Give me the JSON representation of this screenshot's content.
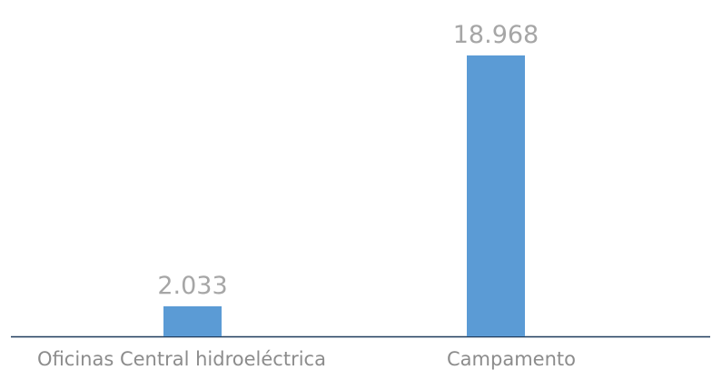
{
  "chart_data": {
    "type": "bar",
    "categories": [
      "Oficinas Central hidroeléctrica",
      "Campamento"
    ],
    "values": [
      2033,
      18968
    ],
    "value_labels": [
      "2.033",
      "18.968"
    ],
    "color": "#5b9bd5"
  }
}
